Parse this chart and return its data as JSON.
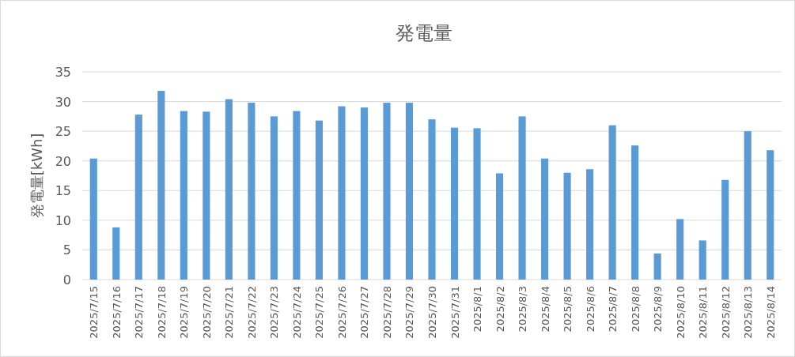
{
  "chart_data": {
    "type": "bar",
    "title": "発電量",
    "ylabel": "発電量[kWh]",
    "categories": [
      "2025/7/15",
      "2025/7/16",
      "2025/7/17",
      "2025/7/18",
      "2025/7/19",
      "2025/7/20",
      "2025/7/21",
      "2025/7/22",
      "2025/7/23",
      "2025/7/24",
      "2025/7/25",
      "2025/7/26",
      "2025/7/27",
      "2025/7/28",
      "2025/7/29",
      "2025/7/30",
      "2025/7/31",
      "2025/8/1",
      "2025/8/2",
      "2025/8/3",
      "2025/8/4",
      "2025/8/5",
      "2025/8/6",
      "2025/8/7",
      "2025/8/8",
      "2025/8/9",
      "2025/8/10",
      "2025/8/11",
      "2025/8/12",
      "2025/8/13",
      "2025/8/14"
    ],
    "values": [
      20.4,
      8.8,
      27.8,
      31.8,
      28.4,
      28.3,
      30.4,
      29.8,
      27.5,
      28.4,
      26.8,
      29.2,
      29.0,
      29.8,
      29.8,
      27.0,
      25.6,
      25.5,
      17.9,
      27.5,
      20.4,
      18.0,
      18.6,
      26.0,
      22.6,
      4.4,
      10.2,
      6.6,
      16.8,
      25.0,
      21.8
    ],
    "color": "#5b9bd5",
    "ylim": [
      0,
      35
    ],
    "yticks": [
      0,
      5,
      10,
      15,
      20,
      25,
      30,
      35
    ],
    "grid": "y"
  }
}
